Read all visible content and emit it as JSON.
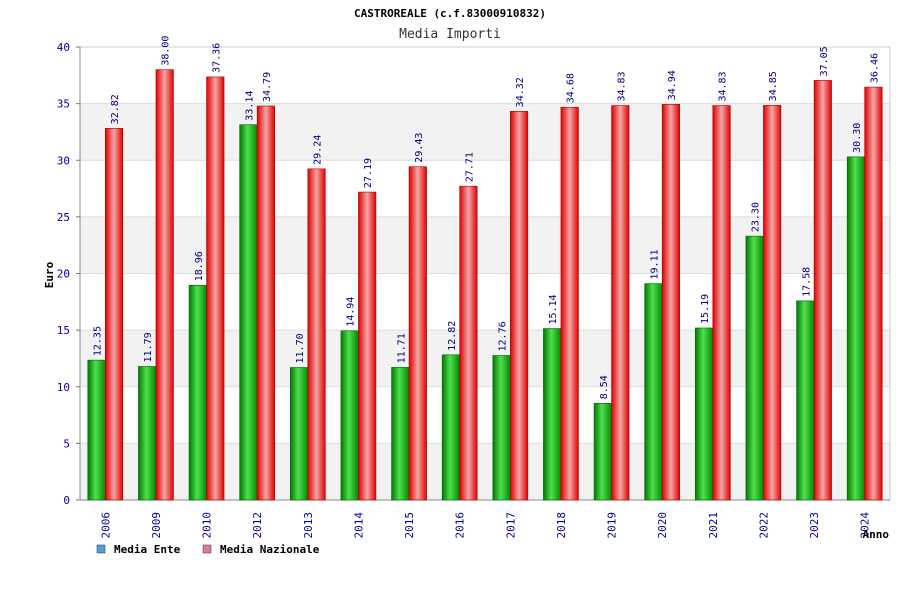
{
  "chart_data": {
    "type": "bar",
    "title": "CASTROREALE (c.f.83000910832)",
    "subtitle": "Media Importi",
    "xlabel": "Anno",
    "ylabel": "Euro",
    "ylim": [
      0,
      40
    ],
    "yticks": [
      0,
      5,
      10,
      15,
      20,
      25,
      30,
      35,
      40
    ],
    "categories": [
      "2006",
      "2009",
      "2010",
      "2012",
      "2013",
      "2014",
      "2015",
      "2016",
      "2017",
      "2018",
      "2019",
      "2020",
      "2021",
      "2022",
      "2023",
      "2024"
    ],
    "series": [
      {
        "name": "Media Ente",
        "color": "#00b000",
        "legend_color": "#5b9bd5",
        "values": [
          12.35,
          11.79,
          18.96,
          33.14,
          11.7,
          14.94,
          11.71,
          12.82,
          12.76,
          15.14,
          8.54,
          19.11,
          15.19,
          23.3,
          17.58,
          30.3
        ]
      },
      {
        "name": "Media Nazionale",
        "color": "#e00000",
        "legend_color": "#e377a8",
        "values": [
          32.82,
          38.0,
          37.36,
          34.79,
          29.24,
          27.19,
          29.43,
          27.71,
          34.32,
          34.68,
          34.83,
          34.94,
          34.83,
          34.85,
          37.05,
          36.46
        ]
      }
    ],
    "grid": true,
    "legend": "bottom-left"
  }
}
